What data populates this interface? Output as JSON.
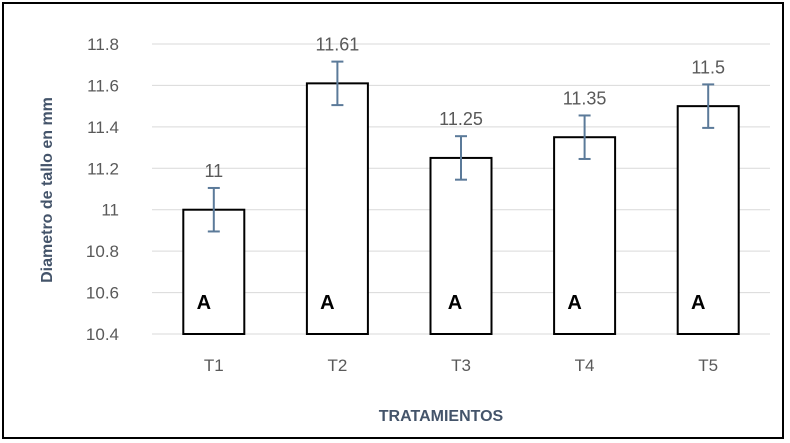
{
  "chart_data": {
    "type": "bar",
    "categories": [
      "T1",
      "T2",
      "T3",
      "T4",
      "T5"
    ],
    "values": [
      11,
      11.61,
      11.25,
      11.35,
      11.5
    ],
    "data_labels": [
      "11",
      "11.61",
      "11.25",
      "11.35",
      "11.5"
    ],
    "error": [
      0.105,
      0.105,
      0.105,
      0.105,
      0.105
    ],
    "group_letters": [
      "A",
      "A",
      "A",
      "A",
      "A"
    ],
    "xlabel": "TRATAMIENTOS",
    "ylabel": "Diametro de tallo en mm",
    "ylim": [
      10.4,
      11.8
    ],
    "yticks": [
      "10.4",
      "10.6",
      "10.8",
      "11",
      "11.2",
      "11.4",
      "11.6",
      "11.8"
    ],
    "grid": true,
    "colors": {
      "bar_fill": "#ffffff",
      "bar_stroke": "#000000",
      "error_bar": "#5b7a99",
      "grid": "#d9d9d9"
    }
  }
}
